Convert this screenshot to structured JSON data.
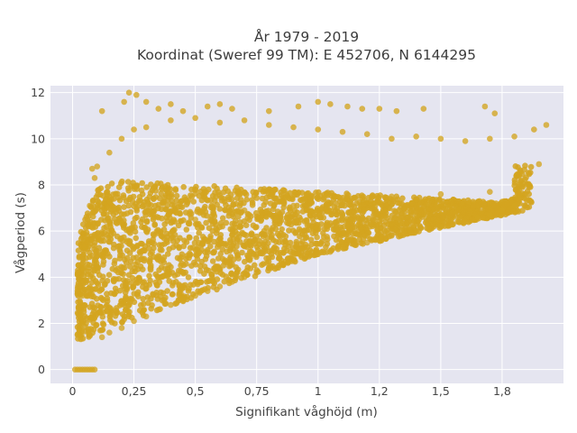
{
  "chart_data": {
    "type": "scatter",
    "title": "År 1979 - 2019",
    "subtitle": "Koordinat (Sweref 99 TM): E 452706, N 6144295",
    "xlabel": "Signifikant våghöjd (m)",
    "ylabel": "Vågperiod (s)",
    "xlim": [
      -0.09,
      2.0
    ],
    "ylim": [
      -0.6,
      12.3
    ],
    "x_ticks": [
      0,
      0.25,
      0.5,
      0.75,
      1,
      1.25,
      1.5,
      1.75
    ],
    "x_tick_labels": [
      "0",
      "0,25",
      "0,5",
      "0,75",
      "1",
      "1,2",
      "1,5",
      "1,8"
    ],
    "y_ticks": [
      0,
      2,
      4,
      6,
      8,
      10,
      12
    ],
    "y_tick_labels": [
      "0",
      "2",
      "4",
      "6",
      "8",
      "10",
      "12"
    ],
    "grid": true,
    "marker_color": "#D4A520",
    "background_color": "#E5E5F0",
    "series": [
      {
        "name": "",
        "points": [
          [
            0.01,
            0
          ],
          [
            0.02,
            0
          ],
          [
            0.03,
            0
          ],
          [
            0.04,
            0
          ],
          [
            0.05,
            0
          ],
          [
            0.06,
            0
          ],
          [
            0.07,
            0
          ],
          [
            0.08,
            0
          ],
          [
            0.09,
            0
          ],
          [
            0.02,
            1.5
          ],
          [
            0.03,
            2.3
          ],
          [
            0.04,
            3.2
          ],
          [
            0.05,
            4.4
          ],
          [
            0.05,
            5.3
          ],
          [
            0.06,
            6.3
          ],
          [
            0.07,
            7.1
          ],
          [
            0.08,
            8.7
          ],
          [
            0.09,
            8.3
          ],
          [
            0.12,
            1.4
          ],
          [
            0.15,
            1.6
          ],
          [
            0.2,
            1.8
          ],
          [
            0.25,
            2.1
          ],
          [
            0.3,
            2.3
          ],
          [
            0.35,
            2.6
          ],
          [
            0.4,
            2.8
          ],
          [
            0.45,
            3.0
          ],
          [
            0.5,
            3.2
          ],
          [
            0.55,
            3.4
          ],
          [
            0.6,
            3.6
          ],
          [
            0.65,
            3.8
          ],
          [
            0.7,
            4.0
          ],
          [
            0.75,
            4.2
          ],
          [
            0.8,
            4.4
          ],
          [
            0.85,
            4.6
          ],
          [
            0.9,
            4.8
          ],
          [
            0.95,
            4.9
          ],
          [
            1.0,
            5.0
          ],
          [
            1.05,
            5.1
          ],
          [
            1.1,
            5.3
          ],
          [
            1.15,
            5.4
          ],
          [
            1.2,
            5.5
          ],
          [
            1.25,
            5.6
          ],
          [
            1.3,
            5.8
          ],
          [
            1.35,
            5.9
          ],
          [
            1.4,
            6.0
          ],
          [
            1.45,
            6.1
          ],
          [
            1.5,
            6.2
          ],
          [
            1.55,
            6.3
          ],
          [
            1.6,
            6.4
          ],
          [
            1.65,
            6.6
          ],
          [
            1.7,
            6.7
          ],
          [
            1.75,
            6.9
          ],
          [
            1.8,
            7.1
          ],
          [
            1.85,
            7.4
          ],
          [
            0.1,
            8.8
          ],
          [
            0.15,
            9.4
          ],
          [
            0.2,
            10.0
          ],
          [
            0.25,
            10.4
          ],
          [
            0.3,
            10.5
          ],
          [
            0.4,
            10.8
          ],
          [
            0.5,
            10.9
          ],
          [
            0.6,
            10.7
          ],
          [
            0.7,
            10.8
          ],
          [
            0.8,
            10.6
          ],
          [
            0.9,
            10.5
          ],
          [
            1.0,
            10.4
          ],
          [
            1.1,
            10.3
          ],
          [
            1.2,
            10.2
          ],
          [
            1.3,
            10.0
          ],
          [
            1.4,
            10.1
          ],
          [
            1.5,
            10.0
          ],
          [
            1.6,
            9.9
          ],
          [
            1.7,
            10.0
          ],
          [
            1.8,
            10.1
          ],
          [
            1.88,
            10.4
          ],
          [
            1.93,
            10.6
          ],
          [
            1.9,
            8.9
          ],
          [
            1.86,
            8.0
          ],
          [
            1.82,
            7.6
          ],
          [
            0.12,
            11.2
          ],
          [
            0.21,
            11.6
          ],
          [
            0.23,
            12.0
          ],
          [
            0.26,
            11.9
          ],
          [
            0.3,
            11.6
          ],
          [
            0.35,
            11.3
          ],
          [
            0.4,
            11.5
          ],
          [
            0.45,
            11.2
          ],
          [
            0.55,
            11.4
          ],
          [
            0.6,
            11.5
          ],
          [
            0.65,
            11.3
          ],
          [
            0.8,
            11.2
          ],
          [
            0.92,
            11.4
          ],
          [
            1.0,
            11.6
          ],
          [
            1.05,
            11.5
          ],
          [
            1.12,
            11.4
          ],
          [
            1.18,
            11.3
          ],
          [
            1.25,
            11.3
          ],
          [
            1.32,
            11.2
          ],
          [
            1.43,
            11.3
          ],
          [
            1.68,
            11.4
          ],
          [
            1.72,
            11.1
          ],
          [
            0.3,
            6.0
          ],
          [
            0.5,
            6.5
          ],
          [
            0.7,
            6.9
          ],
          [
            0.9,
            7.1
          ],
          [
            1.1,
            7.3
          ],
          [
            1.3,
            7.5
          ],
          [
            1.5,
            7.6
          ],
          [
            1.7,
            7.7
          ]
        ]
      }
    ]
  }
}
